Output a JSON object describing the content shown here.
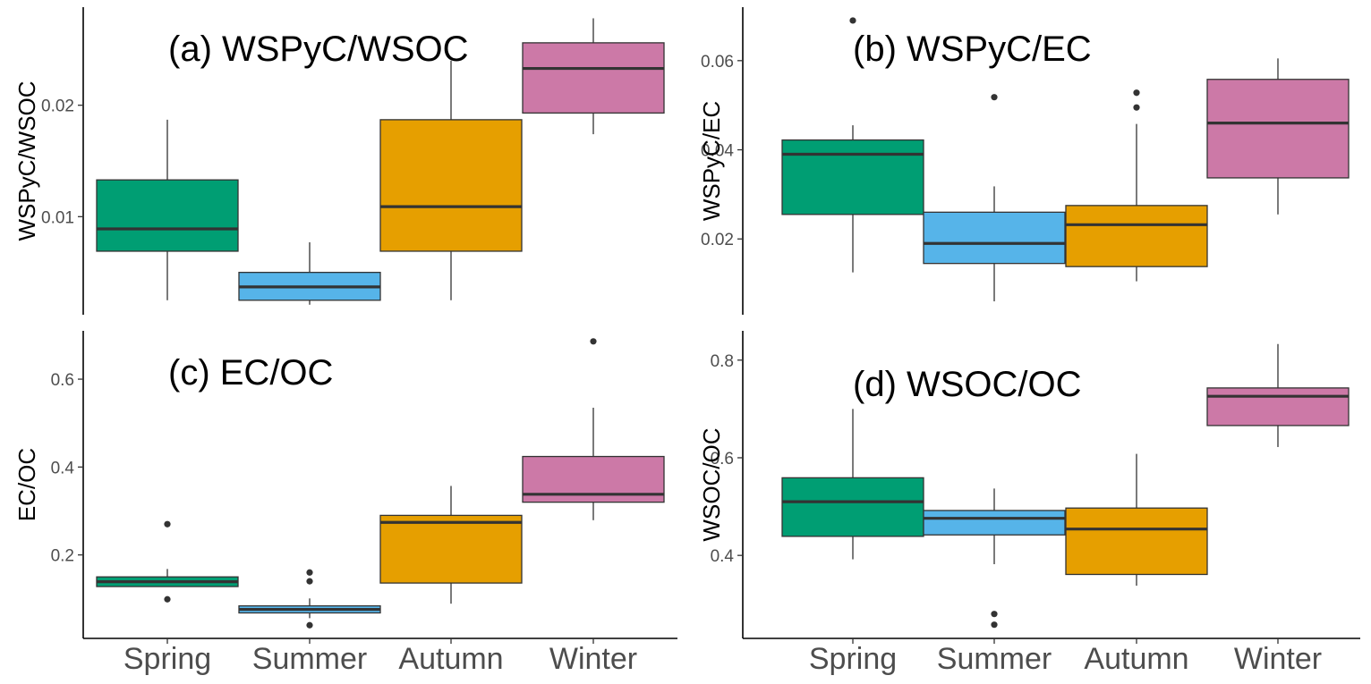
{
  "colors": {
    "Spring": "#009E73",
    "Summer": "#56B4E9",
    "Autumn": "#E69F00",
    "Winter": "#CC79A7"
  },
  "chart_data": [
    {
      "type": "boxplot",
      "title": "(a) WSPyC/WSOC",
      "ylabel": "WSPyC/WSOC",
      "categories": [
        "Spring",
        "Summer",
        "Autumn",
        "Winter"
      ],
      "yticks": [
        0.01,
        0.02
      ],
      "ytick_labels": [
        "0.01",
        "0.02"
      ],
      "ylim": [
        0.0012,
        0.0288
      ],
      "show_x_labels": false,
      "boxes": [
        {
          "category": "Spring",
          "lower_whisker": 0.0025,
          "q1": 0.0069,
          "median": 0.0089,
          "q3": 0.0133,
          "upper_whisker": 0.0187,
          "outliers": []
        },
        {
          "category": "Summer",
          "lower_whisker": 0.0021,
          "q1": 0.0025,
          "median": 0.0037,
          "q3": 0.005,
          "upper_whisker": 0.0077,
          "outliers": []
        },
        {
          "category": "Autumn",
          "lower_whisker": 0.0025,
          "q1": 0.0069,
          "median": 0.0109,
          "q3": 0.0187,
          "upper_whisker": 0.024,
          "outliers": []
        },
        {
          "category": "Winter",
          "lower_whisker": 0.0174,
          "q1": 0.0193,
          "median": 0.0233,
          "q3": 0.0256,
          "upper_whisker": 0.0278,
          "outliers": []
        }
      ]
    },
    {
      "type": "boxplot",
      "title": "(b) WSPyC/EC",
      "ylabel": "WSPyC/EC",
      "categories": [
        "Spring",
        "Summer",
        "Autumn",
        "Winter"
      ],
      "yticks": [
        0.02,
        0.04,
        0.06
      ],
      "ytick_labels": [
        "0.02",
        "0.04",
        "0.06"
      ],
      "ylim": [
        0.003,
        0.072
      ],
      "show_x_labels": false,
      "boxes": [
        {
          "category": "Spring",
          "lower_whisker": 0.0125,
          "q1": 0.0255,
          "median": 0.039,
          "q3": 0.0422,
          "upper_whisker": 0.0455,
          "outliers": [
            0.069
          ]
        },
        {
          "category": "Summer",
          "lower_whisker": 0.006,
          "q1": 0.0145,
          "median": 0.019,
          "q3": 0.026,
          "upper_whisker": 0.0318,
          "outliers": [
            0.0518
          ]
        },
        {
          "category": "Autumn",
          "lower_whisker": 0.0105,
          "q1": 0.0138,
          "median": 0.0232,
          "q3": 0.0275,
          "upper_whisker": 0.0458,
          "outliers": [
            0.0495,
            0.0528
          ]
        },
        {
          "category": "Winter",
          "lower_whisker": 0.0255,
          "q1": 0.0337,
          "median": 0.046,
          "q3": 0.0558,
          "upper_whisker": 0.0605,
          "outliers": []
        }
      ]
    },
    {
      "type": "boxplot",
      "title": "(c) EC/OC",
      "ylabel": "EC/OC",
      "categories": [
        "Spring",
        "Summer",
        "Autumn",
        "Winter"
      ],
      "yticks": [
        0.2,
        0.4,
        0.6
      ],
      "ytick_labels": [
        "0.2",
        "0.4",
        "0.6"
      ],
      "ylim": [
        0.01,
        0.71
      ],
      "show_x_labels": true,
      "boxes": [
        {
          "category": "Spring",
          "lower_whisker": 0.128,
          "q1": 0.128,
          "median": 0.139,
          "q3": 0.15,
          "upper_whisker": 0.168,
          "outliers": [
            0.27,
            0.099
          ]
        },
        {
          "category": "Summer",
          "lower_whisker": 0.056,
          "q1": 0.068,
          "median": 0.076,
          "q3": 0.084,
          "upper_whisker": 0.101,
          "outliers": [
            0.16,
            0.14,
            0.04
          ]
        },
        {
          "category": "Autumn",
          "lower_whisker": 0.089,
          "q1": 0.136,
          "median": 0.274,
          "q3": 0.29,
          "upper_whisker": 0.357,
          "outliers": []
        },
        {
          "category": "Winter",
          "lower_whisker": 0.279,
          "q1": 0.32,
          "median": 0.338,
          "q3": 0.424,
          "upper_whisker": 0.535,
          "outliers": [
            0.686
          ]
        }
      ]
    },
    {
      "type": "boxplot",
      "title": "(d) WSOC/OC",
      "ylabel": "WSOC/OC",
      "categories": [
        "Spring",
        "Summer",
        "Autumn",
        "Winter"
      ],
      "yticks": [
        0.4,
        0.6,
        0.8
      ],
      "ytick_labels": [
        "0.4",
        "0.6",
        "0.8"
      ],
      "ylim": [
        0.23,
        0.86
      ],
      "show_x_labels": true,
      "boxes": [
        {
          "category": "Spring",
          "lower_whisker": 0.392,
          "q1": 0.439,
          "median": 0.51,
          "q3": 0.559,
          "upper_whisker": 0.7,
          "outliers": []
        },
        {
          "category": "Summer",
          "lower_whisker": 0.382,
          "q1": 0.442,
          "median": 0.476,
          "q3": 0.492,
          "upper_whisker": 0.537,
          "outliers": [
            0.28,
            0.258
          ]
        },
        {
          "category": "Autumn",
          "lower_whisker": 0.338,
          "q1": 0.361,
          "median": 0.454,
          "q3": 0.497,
          "upper_whisker": 0.608,
          "outliers": []
        },
        {
          "category": "Winter",
          "lower_whisker": 0.622,
          "q1": 0.666,
          "median": 0.726,
          "q3": 0.743,
          "upper_whisker": 0.833,
          "outliers": []
        }
      ]
    }
  ]
}
